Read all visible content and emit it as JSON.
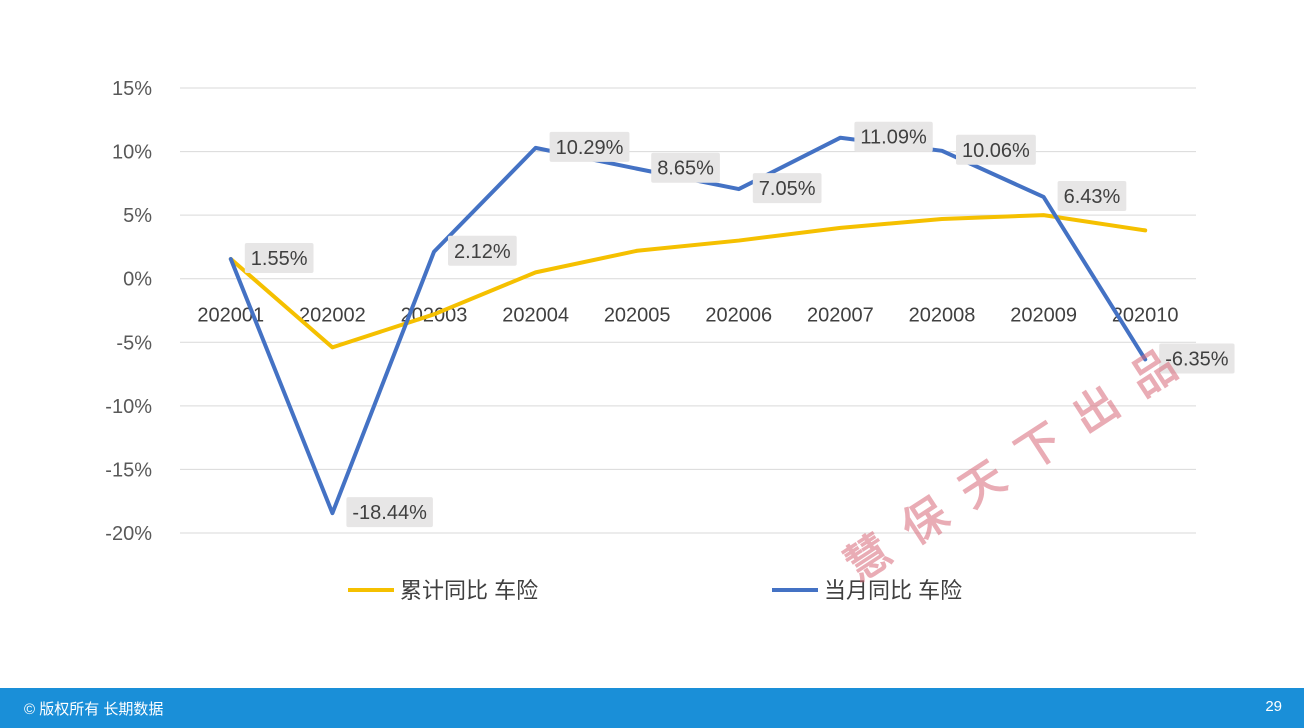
{
  "chart_data": {
    "type": "line",
    "categories": [
      "202001",
      "202002",
      "202003",
      "202004",
      "202005",
      "202006",
      "202007",
      "202008",
      "202009",
      "202010"
    ],
    "series": [
      {
        "name": "累计同比 车险",
        "color": "#f5c000",
        "values": [
          1.55,
          -5.4,
          -2.8,
          0.5,
          2.2,
          3.0,
          4.0,
          4.7,
          5.0,
          3.8
        ],
        "show_labels": false
      },
      {
        "name": "当月同比 车险",
        "color": "#4472c4",
        "values": [
          1.55,
          -18.44,
          2.12,
          10.29,
          8.65,
          7.05,
          11.09,
          10.06,
          6.43,
          -6.35
        ],
        "show_labels": true,
        "labels": [
          "1.55%",
          "-18.44%",
          "2.12%",
          "10.29%",
          "8.65%",
          "7.05%",
          "11.09%",
          "10.06%",
          "6.43%",
          "-6.35%"
        ]
      }
    ],
    "y_ticks": [
      "15%",
      "10%",
      "5%",
      "0%",
      "-5%",
      "-10%",
      "-15%",
      "-20%"
    ],
    "ylim": [
      -20,
      15
    ],
    "grid": true,
    "legend": "bottom"
  },
  "watermark": "慧保天下出品",
  "footer": {
    "left": "© 版权所有 长期数据",
    "page": "29"
  }
}
